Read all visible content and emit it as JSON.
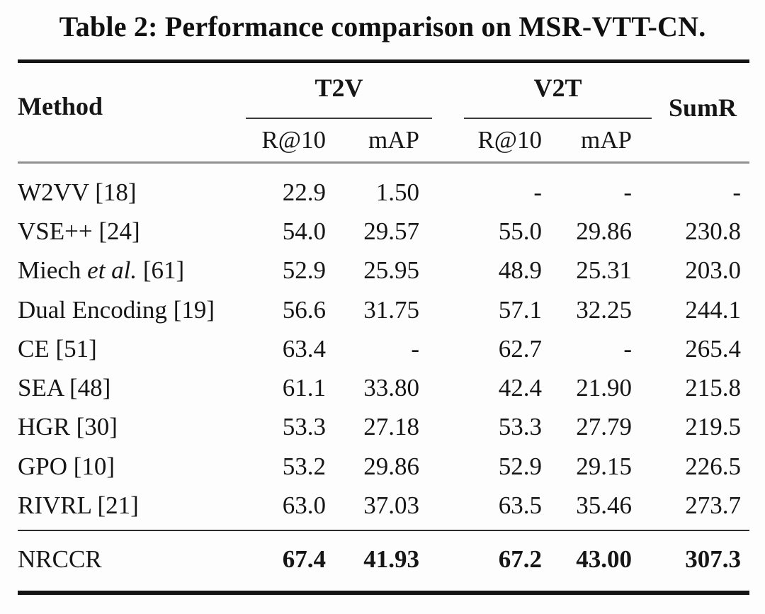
{
  "title": "Table 2: Performance comparison on MSR-VTT-CN.",
  "header": {
    "method": "Method",
    "group_t2v": "T2V",
    "group_v2t": "V2T",
    "sumr": "SumR",
    "t2v_r10": "R@10",
    "t2v_map": "mAP",
    "v2t_r10": "R@10",
    "v2t_map": "mAP"
  },
  "rows": [
    {
      "m1": "W2VV ",
      "m2": "",
      "m3": "[18]",
      "c1": "22.9",
      "c2": "1.50",
      "c3": "-",
      "c4": "-",
      "c5": "-"
    },
    {
      "m1": "VSE++ ",
      "m2": "",
      "m3": "[24]",
      "c1": "54.0",
      "c2": "29.57",
      "c3": "55.0",
      "c4": "29.86",
      "c5": "230.8"
    },
    {
      "m1": "Miech ",
      "m2": "et al.",
      "m3": " [61]",
      "c1": "52.9",
      "c2": "25.95",
      "c3": "48.9",
      "c4": "25.31",
      "c5": "203.0"
    },
    {
      "m1": "Dual Encoding ",
      "m2": "",
      "m3": "[19]",
      "c1": "56.6",
      "c2": "31.75",
      "c3": "57.1",
      "c4": "32.25",
      "c5": "244.1"
    },
    {
      "m1": "CE ",
      "m2": "",
      "m3": "[51]",
      "c1": "63.4",
      "c2": "-",
      "c3": "62.7",
      "c4": "-",
      "c5": "265.4"
    },
    {
      "m1": "SEA ",
      "m2": "",
      "m3": "[48]",
      "c1": "61.1",
      "c2": "33.80",
      "c3": "42.4",
      "c4": "21.90",
      "c5": "215.8"
    },
    {
      "m1": "HGR ",
      "m2": "",
      "m3": "[30]",
      "c1": "53.3",
      "c2": "27.18",
      "c3": "53.3",
      "c4": "27.79",
      "c5": "219.5"
    },
    {
      "m1": "GPO ",
      "m2": "",
      "m3": "[10]",
      "c1": "53.2",
      "c2": "29.86",
      "c3": "52.9",
      "c4": "29.15",
      "c5": "226.5"
    },
    {
      "m1": "RIVRL ",
      "m2": "",
      "m3": "[21]",
      "c1": "63.0",
      "c2": "37.03",
      "c3": "63.5",
      "c4": "35.46",
      "c5": "273.7"
    }
  ],
  "final_row": {
    "method": "NRCCR",
    "c1": "67.4",
    "c2": "41.93",
    "c3": "67.2",
    "c4": "43.00",
    "c5": "307.3"
  }
}
